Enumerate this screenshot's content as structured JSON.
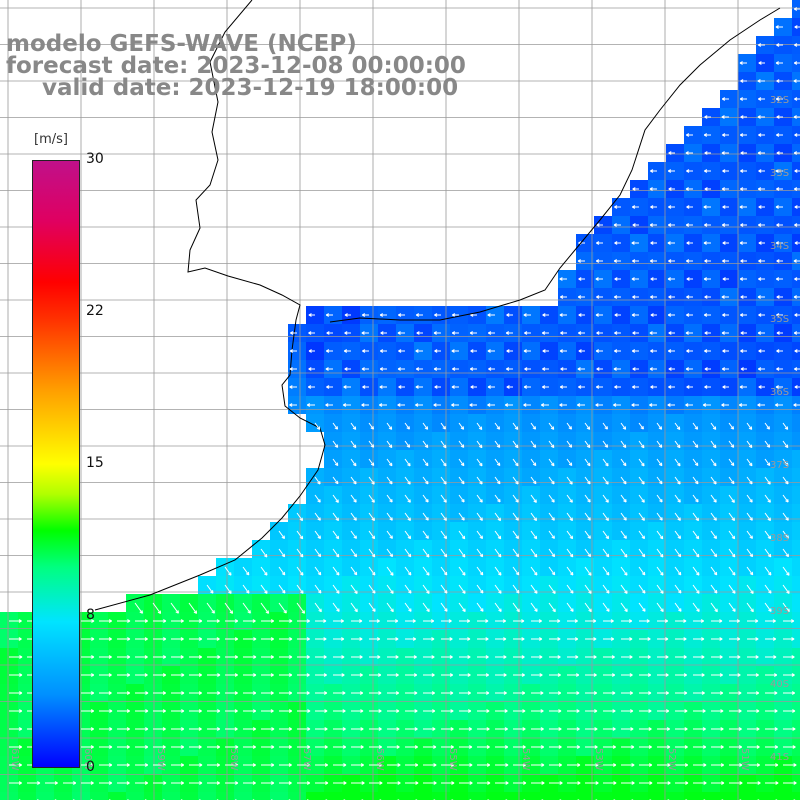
{
  "title": {
    "line1": "modelo GEFS-WAVE (NCEP)",
    "line2": "forecast date: 2023-12-08 00:00:00",
    "line3": "valid date: 2023-12-19 18:00:00"
  },
  "colorbar": {
    "unit": "[m/s]",
    "ticks": [
      "30",
      "22",
      "15",
      "8",
      "0"
    ],
    "min": 0,
    "max": 30
  },
  "grid": {
    "lat_labels": [
      "32S",
      "33S",
      "34S",
      "35S",
      "36S",
      "37S",
      "38S",
      "39S",
      "40S",
      "41S"
    ],
    "lon_labels": [
      "61W",
      "60W",
      "59W",
      "58W",
      "57W",
      "56W",
      "55W",
      "54W",
      "53W",
      "52W",
      "51W"
    ]
  },
  "colors": {
    "coast": "#000000",
    "gridline": "#9a9a9a",
    "vector": "#ffffff"
  }
}
